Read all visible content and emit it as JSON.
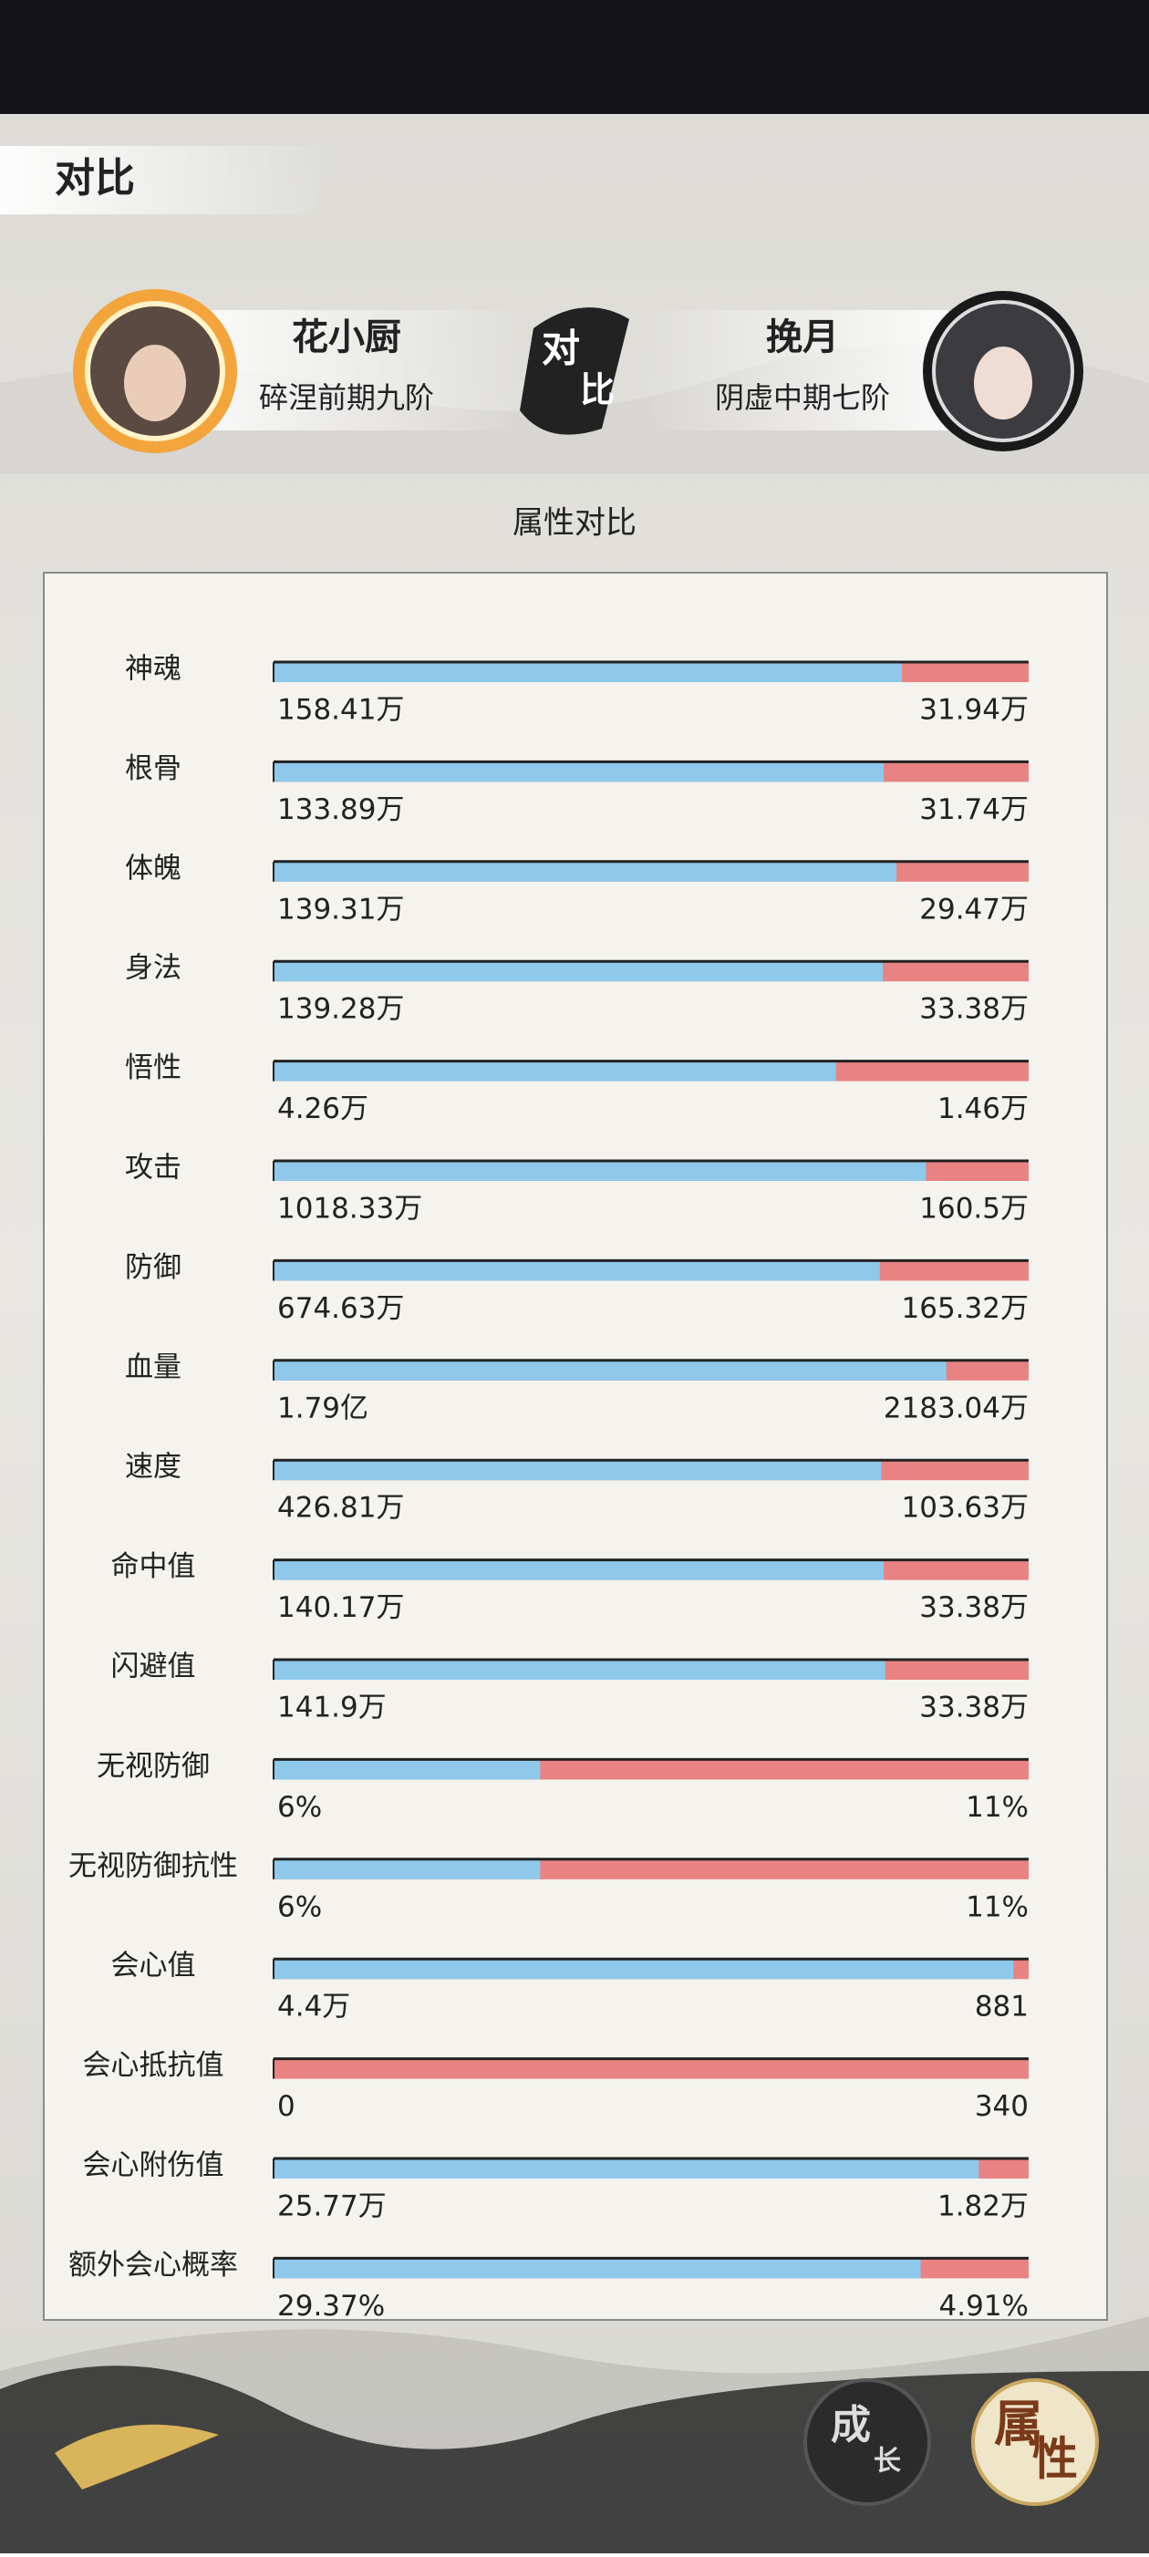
{
  "header": {
    "title": "对比"
  },
  "players": {
    "left": {
      "name": "花小厨",
      "realm": "碎涅前期九阶"
    },
    "vs_badge": [
      "对",
      "比"
    ],
    "right": {
      "name": "挽月",
      "realm": "阴虚中期七阶"
    }
  },
  "section_title": "属性对比",
  "rows": [
    {
      "label": "神魂",
      "left": "158.41万",
      "right": "31.94万",
      "left_share": 83.2
    },
    {
      "label": "根骨",
      "left": "133.89万",
      "right": "31.74万",
      "left_share": 80.8
    },
    {
      "label": "体魄",
      "left": "139.31万",
      "right": "29.47万",
      "left_share": 82.5
    },
    {
      "label": "身法",
      "left": "139.28万",
      "right": "33.38万",
      "left_share": 80.7
    },
    {
      "label": "悟性",
      "left": "4.26万",
      "right": "1.46万",
      "left_share": 74.5
    },
    {
      "label": "攻击",
      "left": "1018.33万",
      "right": "160.5万",
      "left_share": 86.4
    },
    {
      "label": "防御",
      "left": "674.63万",
      "right": "165.32万",
      "left_share": 80.3
    },
    {
      "label": "血量",
      "left": "1.79亿",
      "right": "2183.04万",
      "left_share": 89.1
    },
    {
      "label": "速度",
      "left": "426.81万",
      "right": "103.63万",
      "left_share": 80.5
    },
    {
      "label": "命中值",
      "left": "140.17万",
      "right": "33.38万",
      "left_share": 80.8
    },
    {
      "label": "闪避值",
      "left": "141.9万",
      "right": "33.38万",
      "left_share": 81.0
    },
    {
      "label": "无视防御",
      "left": "6%",
      "right": "11%",
      "left_share": 35.3
    },
    {
      "label": "无视防御抗性",
      "left": "6%",
      "right": "11%",
      "left_share": 35.3
    },
    {
      "label": "会心值",
      "left": "4.4万",
      "right": "881",
      "left_share": 98.0
    },
    {
      "label": "会心抵抗值",
      "left": "0",
      "right": "340",
      "left_share": 0
    },
    {
      "label": "会心附伤值",
      "left": "25.77万",
      "right": "1.82万",
      "left_share": 93.4
    },
    {
      "label": "额外会心概率",
      "left": "29.37%",
      "right": "4.91%",
      "left_share": 85.7
    }
  ],
  "buttons": [
    [
      "成",
      "长"
    ],
    [
      "属",
      "性"
    ]
  ]
}
